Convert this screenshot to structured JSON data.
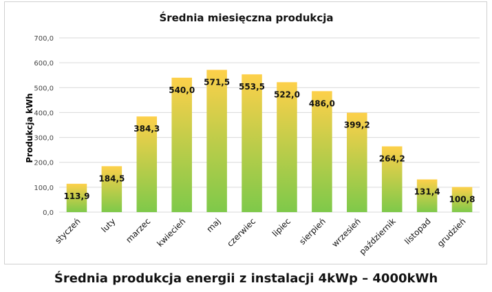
{
  "chart_data": {
    "type": "bar",
    "title": "Średnia miesięczna produkcja",
    "xlabel": "",
    "ylabel": "Produkcja kWh",
    "ylim": [
      0,
      700
    ],
    "yticks": [
      "0,0",
      "100,0",
      "200,0",
      "300,0",
      "400,0",
      "500,0",
      "600,0",
      "700,0"
    ],
    "grid": true,
    "categories": [
      "styczeń",
      "luty",
      "marzec",
      "kwiecień",
      "maj",
      "czerwiec",
      "lipiec",
      "sierpień",
      "wrzesień",
      "październik",
      "listopad",
      "grudzień"
    ],
    "values": [
      113.9,
      184.5,
      384.3,
      540.0,
      571.5,
      553.5,
      522.0,
      486.0,
      399.2,
      264.2,
      131.4,
      100.8
    ],
    "data_labels": [
      "113,9",
      "184,5",
      "384,3",
      "540,0",
      "571,5",
      "553,5",
      "522,0",
      "486,0",
      "399,2",
      "264,2",
      "131,4",
      "100,8"
    ],
    "colors": {
      "bar_top": "#fdd04a",
      "bar_bottom": "#7ec94a",
      "grid": "#d9d9d9"
    }
  },
  "caption": "Średnia produkcja energii z instalacji 4kWp – 4000kWh"
}
